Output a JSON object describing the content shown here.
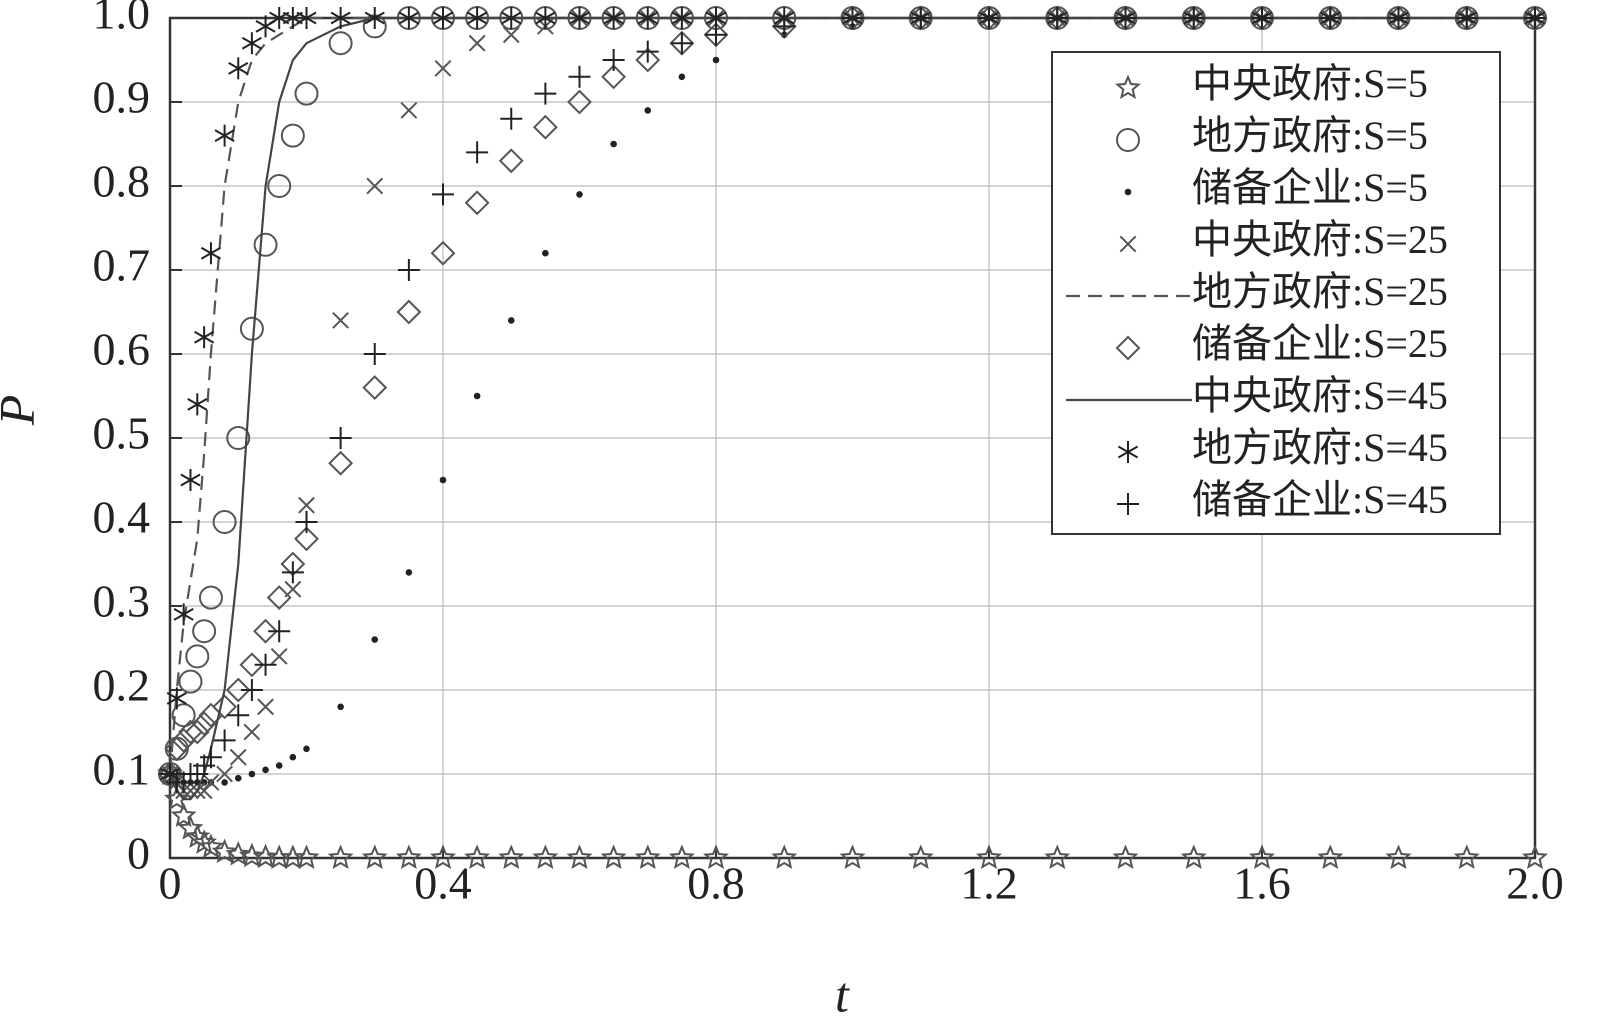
{
  "chart_data": {
    "type": "line",
    "xlabel": "t",
    "ylabel": "P",
    "x": [
      0,
      0.01,
      0.02,
      0.03,
      0.04,
      0.05,
      0.06,
      0.08,
      0.1,
      0.12,
      0.14,
      0.16,
      0.18,
      0.2,
      0.25,
      0.3,
      0.35,
      0.4,
      0.45,
      0.5,
      0.55,
      0.6,
      0.65,
      0.7,
      0.75,
      0.8,
      0.9,
      1.0,
      1.1,
      1.2,
      1.3,
      1.4,
      1.5,
      1.6,
      1.7,
      1.8,
      1.9,
      2.0
    ],
    "xlim": [
      0,
      2
    ],
    "xticks": [
      0,
      0.4,
      0.8,
      1.2,
      1.6,
      {
        "value": 2,
        "label": "2.0"
      }
    ],
    "ylim": [
      0,
      1
    ],
    "yticks": [
      0,
      0.1,
      0.2,
      0.3,
      0.4,
      0.5,
      0.6,
      0.7,
      0.8,
      0.9,
      {
        "value": 1,
        "label": "1.0"
      }
    ],
    "grid": true,
    "legend": "upper right",
    "series": [
      {
        "name": "中央政府:S=5",
        "color": "#555555",
        "marker": "star",
        "line": "none",
        "values": [
          0.1,
          0.07,
          0.05,
          0.035,
          0.025,
          0.018,
          0.013,
          0.007,
          0.004,
          0.002,
          0.001,
          0,
          0,
          0,
          0,
          0,
          0,
          0,
          0,
          0,
          0,
          0,
          0,
          0,
          0,
          0,
          0,
          0,
          0,
          0,
          0,
          0,
          0,
          0,
          0,
          0,
          0,
          0
        ]
      },
      {
        "name": "地方政府:S=5",
        "color": "#555555",
        "marker": "circle",
        "line": "none",
        "values": [
          0.1,
          0.13,
          0.17,
          0.21,
          0.24,
          0.27,
          0.31,
          0.4,
          0.5,
          0.63,
          0.73,
          0.8,
          0.86,
          0.91,
          0.97,
          0.99,
          1,
          1,
          1,
          1,
          1,
          1,
          1,
          1,
          1,
          1,
          1,
          1,
          1,
          1,
          1,
          1,
          1,
          1,
          1,
          1,
          1,
          1
        ]
      },
      {
        "name": "储备企业:S=5",
        "color": "#222222",
        "marker": "dot",
        "line": "none",
        "values": [
          0.1,
          0.09,
          0.09,
          0.09,
          0.09,
          0.09,
          0.09,
          0.09,
          0.095,
          0.1,
          0.105,
          0.11,
          0.12,
          0.13,
          0.18,
          0.26,
          0.34,
          0.45,
          0.55,
          0.64,
          0.72,
          0.79,
          0.85,
          0.89,
          0.93,
          0.95,
          0.98,
          0.99,
          1,
          1,
          1,
          1,
          1,
          1,
          1,
          1,
          1,
          1
        ]
      },
      {
        "name": "中央政府:S=25",
        "color": "#555555",
        "marker": "x",
        "line": "none",
        "values": [
          0.1,
          0.09,
          0.08,
          0.08,
          0.08,
          0.08,
          0.09,
          0.1,
          0.12,
          0.15,
          0.18,
          0.24,
          0.32,
          0.42,
          0.64,
          0.8,
          0.89,
          0.94,
          0.97,
          0.98,
          0.99,
          1,
          1,
          1,
          1,
          1,
          1,
          1,
          1,
          1,
          1,
          1,
          1,
          1,
          1,
          1,
          1,
          1
        ]
      },
      {
        "name": "地方政府:S=25",
        "color": "#555555",
        "marker": "none",
        "line": "dashed",
        "values": [
          0.1,
          0.2,
          0.28,
          0.33,
          0.38,
          0.48,
          0.6,
          0.8,
          0.9,
          0.95,
          0.97,
          0.98,
          0.99,
          1,
          1,
          1,
          1,
          1,
          1,
          1,
          1,
          1,
          1,
          1,
          1,
          1,
          1,
          1,
          1,
          1,
          1,
          1,
          1,
          1,
          1,
          1,
          1,
          1
        ]
      },
      {
        "name": "储备企业:S=25",
        "color": "#555555",
        "marker": "diamond",
        "line": "none",
        "values": [
          0.1,
          0.13,
          0.14,
          0.15,
          0.15,
          0.16,
          0.17,
          0.18,
          0.2,
          0.23,
          0.27,
          0.31,
          0.35,
          0.38,
          0.47,
          0.56,
          0.65,
          0.72,
          0.78,
          0.83,
          0.87,
          0.9,
          0.93,
          0.95,
          0.97,
          0.98,
          0.99,
          1,
          1,
          1,
          1,
          1,
          1,
          1,
          1,
          1,
          1,
          1
        ]
      },
      {
        "name": "中央政府:S=45",
        "color": "#444444",
        "marker": "none",
        "line": "solid",
        "values": [
          0.1,
          0.08,
          0.07,
          0.07,
          0.08,
          0.1,
          0.13,
          0.2,
          0.35,
          0.6,
          0.8,
          0.9,
          0.95,
          0.97,
          0.99,
          1,
          1,
          1,
          1,
          1,
          1,
          1,
          1,
          1,
          1,
          1,
          1,
          1,
          1,
          1,
          1,
          1,
          1,
          1,
          1,
          1,
          1,
          1
        ]
      },
      {
        "name": "地方政府:S=45",
        "color": "#222222",
        "marker": "asterisk",
        "line": "none",
        "values": [
          0.1,
          0.19,
          0.29,
          0.45,
          0.54,
          0.62,
          0.72,
          0.86,
          0.94,
          0.97,
          0.99,
          1,
          1,
          1,
          1,
          1,
          1,
          1,
          1,
          1,
          1,
          1,
          1,
          1,
          1,
          1,
          1,
          1,
          1,
          1,
          1,
          1,
          1,
          1,
          1,
          1,
          1,
          1
        ]
      },
      {
        "name": "储备企业:S=45",
        "color": "#222222",
        "marker": "plus",
        "line": "none",
        "values": [
          0.1,
          0.09,
          0.09,
          0.1,
          0.1,
          0.11,
          0.12,
          0.14,
          0.17,
          0.2,
          0.23,
          0.27,
          0.34,
          0.4,
          0.5,
          0.6,
          0.7,
          0.79,
          0.84,
          0.88,
          0.91,
          0.93,
          0.95,
          0.96,
          0.97,
          0.98,
          0.99,
          1,
          1,
          1,
          1,
          1,
          1,
          1,
          1,
          1,
          1,
          1
        ]
      }
    ]
  }
}
